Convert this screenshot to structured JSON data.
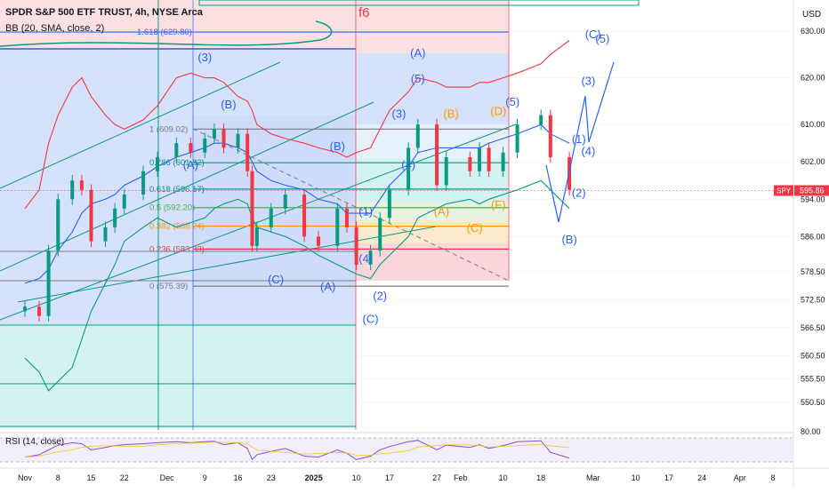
{
  "header": {
    "symbol_line": "SPDR S&P 500 ETF TRUST, 4h, NYSE Arca",
    "indicator": "BB (20, SMA, close, 2)",
    "currency": "USD"
  },
  "price_tag": {
    "symbol": "SPY",
    "value": "595.86",
    "color": "#f23645"
  },
  "chart_data": {
    "type": "candlestick",
    "title": "SPDR S&P 500 ETF TRUST, 4h, NYSE Arca",
    "ylim": [
      546,
      634
    ],
    "y_ticks": [
      550.5,
      555.5,
      560.5,
      566.5,
      572.5,
      578.5,
      586.0,
      594.0,
      602.0,
      610.0,
      620.0,
      630.0
    ],
    "y_tick_labels": [
      "550.50",
      "555.50",
      "560.50",
      "566.50",
      "572.50",
      "578.50",
      "586.00",
      "594.00",
      "602.00",
      "610.00",
      "620.00",
      "630.00"
    ],
    "x_ticks": [
      "Nov",
      "8",
      "15",
      "22",
      "Dec",
      "9",
      "16",
      "23",
      "2025",
      "10",
      "17",
      "27",
      "Feb",
      "10",
      "18",
      "Mar",
      "10",
      "17",
      "24",
      "Apr",
      "8"
    ],
    "x_tick_dates": [
      "2024-11-01",
      "2024-11-08",
      "2024-11-15",
      "2024-11-22",
      "2024-12-01",
      "2024-12-09",
      "2024-12-16",
      "2024-12-23",
      "2025-01-01",
      "2025-01-10",
      "2025-01-17",
      "2025-01-27",
      "2025-02-01",
      "2025-02-10",
      "2025-02-18",
      "2025-03-01",
      "2025-03-10",
      "2025-03-17",
      "2025-03-24",
      "2025-04-01",
      "2025-04-08"
    ],
    "price_path": {
      "dates": [
        "2024-11-01",
        "2024-11-04",
        "2024-11-06",
        "2024-11-08",
        "2024-11-11",
        "2024-11-13",
        "2024-11-15",
        "2024-11-18",
        "2024-11-20",
        "2024-11-22",
        "2024-11-26",
        "2024-11-29",
        "2024-12-03",
        "2024-12-06",
        "2024-12-09",
        "2024-12-11",
        "2024-12-13",
        "2024-12-16",
        "2024-12-18",
        "2024-12-19",
        "2024-12-20",
        "2024-12-23",
        "2024-12-26",
        "2024-12-30",
        "2025-01-02",
        "2025-01-06",
        "2025-01-08",
        "2025-01-10",
        "2025-01-13",
        "2025-01-15",
        "2025-01-17",
        "2025-01-21",
        "2025-01-23",
        "2025-01-27",
        "2025-01-29",
        "2025-02-03",
        "2025-02-05",
        "2025-02-07",
        "2025-02-10",
        "2025-02-13",
        "2025-02-18",
        "2025-02-20",
        "2025-02-24"
      ],
      "values": [
        571,
        569,
        583,
        594,
        598,
        596,
        585,
        588,
        592,
        595,
        600,
        603,
        606,
        604,
        607,
        609,
        605,
        608,
        600,
        584,
        588,
        592,
        595,
        586,
        584,
        592,
        588,
        580,
        583,
        590,
        596,
        605,
        610,
        597,
        603,
        600,
        605,
        600,
        604,
        610,
        612,
        603,
        596
      ]
    },
    "bollinger": {
      "upper": [
        592,
        596,
        606,
        612,
        618,
        620,
        616,
        612,
        610,
        609,
        611,
        614,
        620,
        621,
        620,
        620,
        619,
        616,
        615,
        613,
        610,
        608,
        607,
        606,
        605,
        604,
        603,
        604,
        605,
        609,
        613,
        617,
        620,
        619,
        618,
        618,
        619,
        619,
        620,
        621,
        623,
        625,
        628
      ],
      "middle": [
        576,
        577,
        579,
        583,
        587,
        591,
        593,
        594,
        595,
        597,
        599,
        601,
        603,
        604,
        605,
        606,
        606,
        605,
        604,
        602,
        600,
        598,
        597,
        596,
        594,
        593,
        591,
        591,
        591,
        594,
        597,
        601,
        604,
        605,
        605,
        605,
        605,
        606,
        607,
        608,
        610,
        608,
        606
      ],
      "lower": [
        560,
        557,
        553,
        555,
        558,
        564,
        570,
        576,
        580,
        585,
        588,
        590,
        588,
        589,
        590,
        592,
        593,
        594,
        593,
        590,
        588,
        587,
        586,
        584,
        582,
        580,
        579,
        578,
        577,
        580,
        582,
        586,
        590,
        592,
        593,
        594,
        593,
        594,
        595,
        596,
        598,
        596,
        592
      ]
    },
    "fibonacci": {
      "levels": [
        {
          "label": "1 (609.02)",
          "value": 609.02,
          "color": "#787b86"
        },
        {
          "label": "0.786 (601.82)",
          "value": 601.82,
          "color": "#089981"
        },
        {
          "label": "0.618 (596.17)",
          "value": 596.17,
          "color": "#089981"
        },
        {
          "label": "0.5 (592.20)",
          "value": 592.2,
          "color": "#4caf50"
        },
        {
          "label": "0.382 (588.24)",
          "value": 588.24,
          "color": "#ff9800"
        },
        {
          "label": "0.236 (583.33)",
          "value": 583.33,
          "color": "#f23645"
        },
        {
          "label": "0 (575.39)",
          "value": 575.39,
          "color": "#787b86"
        }
      ]
    },
    "ext_level": {
      "label": "1.618 (629.80)",
      "value": 629.8
    },
    "wave_labels": [
      {
        "text": "(3)",
        "date": "2024-12-09",
        "price": 623.5,
        "color": "#2962ff"
      },
      {
        "text": "(B)",
        "date": "2024-12-14",
        "price": 613.5,
        "color": "#2962ff"
      },
      {
        "text": "(A)",
        "date": "2024-12-06",
        "price": 600.5,
        "color": "#2962ff"
      },
      {
        "text": "(C)",
        "date": "2024-12-24",
        "price": 576.0,
        "color": "#2962ff"
      },
      {
        "text": "(A)",
        "date": "2025-01-04",
        "price": 574.5,
        "color": "#2962ff"
      },
      {
        "text": "(B)",
        "date": "2025-01-06",
        "price": 604.5,
        "color": "#2962ff"
      },
      {
        "text": "(1)",
        "date": "2025-01-12",
        "price": 590.5,
        "color": "#2962ff"
      },
      {
        "text": "(4)",
        "date": "2025-01-12",
        "price": 580.5,
        "color": "#2962ff"
      },
      {
        "text": "(2)",
        "date": "2025-01-15",
        "price": 572.5,
        "color": "#2962ff"
      },
      {
        "text": "(C)",
        "date": "2025-01-13",
        "price": 567.5,
        "color": "#2962ff"
      },
      {
        "text": "(3)",
        "date": "2025-01-19",
        "price": 611.5,
        "color": "#2962ff"
      },
      {
        "text": "(A)",
        "date": "2025-01-23",
        "price": 624.5,
        "color": "#2962ff"
      },
      {
        "text": "(5)",
        "date": "2025-01-23",
        "price": 619.0,
        "color": "#2962ff"
      },
      {
        "text": "(4)",
        "date": "2025-01-21",
        "price": 600.5,
        "color": "#2962ff"
      },
      {
        "text": "(B)",
        "date": "2025-01-30",
        "price": 611.5,
        "color": "#ff9800"
      },
      {
        "text": "(A)",
        "date": "2025-01-28",
        "price": 590.5,
        "color": "#ff9800"
      },
      {
        "text": "(C)",
        "date": "2025-02-04",
        "price": 587.0,
        "color": "#ff9800"
      },
      {
        "text": "(D)",
        "date": "2025-02-09",
        "price": 612.0,
        "color": "#ff9800"
      },
      {
        "text": "(F)",
        "date": "2025-02-09",
        "price": 592.0,
        "color": "#ff9800"
      },
      {
        "text": "(5)",
        "date": "2025-02-12",
        "price": 614.0,
        "color": "#2962ff"
      },
      {
        "text": "(C)",
        "date": "2025-03-01",
        "price": 628.5,
        "color": "#2962ff"
      },
      {
        "text": "(5)",
        "date": "2025-03-03",
        "price": 627.5,
        "color": "#2962ff"
      },
      {
        "text": "(3)",
        "date": "2025-02-28",
        "price": 618.5,
        "color": "#2962ff"
      },
      {
        "text": "(1)",
        "date": "2025-02-26",
        "price": 606.0,
        "color": "#2962ff"
      },
      {
        "text": "(4)",
        "date": "2025-02-28",
        "price": 603.5,
        "color": "#2962ff"
      },
      {
        "text": "(2)",
        "date": "2025-02-26",
        "price": 594.5,
        "color": "#2962ff"
      },
      {
        "text": "(B)",
        "date": "2025-02-24",
        "price": 584.5,
        "color": "#2962ff"
      }
    ],
    "annotations": [
      {
        "text": "f6",
        "color": "#f23645"
      }
    ],
    "rsi": {
      "label": "RSI (14, close)",
      "tick": "80.00",
      "values": [
        40,
        45,
        55,
        65,
        70,
        68,
        55,
        60,
        64,
        66,
        68,
        70,
        72,
        70,
        72,
        73,
        66,
        70,
        58,
        35,
        45,
        52,
        58,
        42,
        40,
        55,
        48,
        35,
        42,
        55,
        62,
        72,
        75,
        55,
        65,
        60,
        66,
        58,
        64,
        72,
        74,
        50,
        38
      ]
    }
  }
}
